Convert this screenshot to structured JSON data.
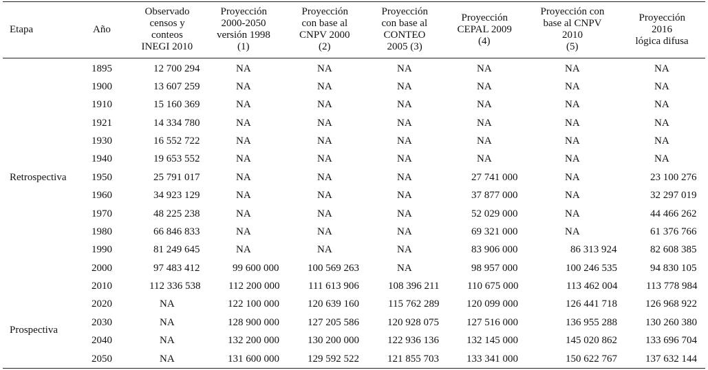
{
  "header": [
    [
      "Etapa"
    ],
    [
      "Año"
    ],
    [
      "Observado",
      "censos y",
      "conteos",
      "INEGI 2010"
    ],
    [
      "Proyección",
      "2000-2050",
      "versión 1998",
      "(1)"
    ],
    [
      "Proyección",
      "con base al",
      "CNPV 2000",
      "(2)"
    ],
    [
      "Proyección",
      "con base al",
      "CONTEO",
      "2005 (3)"
    ],
    [
      "Proyección",
      "CEPAL 2009",
      "(4)"
    ],
    [
      "Proyección con",
      "base al CNPV",
      "2010",
      "(5)"
    ],
    [
      "Proyección",
      "2016",
      "lógica difusa"
    ]
  ],
  "stages": [
    "Retrospectiva",
    "Prospectiva"
  ],
  "rows": [
    [
      "1895",
      "12 700 294",
      "NA",
      "NA",
      "NA",
      "NA",
      "NA",
      "NA"
    ],
    [
      "1900",
      "13 607 259",
      "NA",
      "NA",
      "NA",
      "NA",
      "NA",
      "NA"
    ],
    [
      "1910",
      "15 160 369",
      "NA",
      "NA",
      "NA",
      "NA",
      "NA",
      "NA"
    ],
    [
      "1921",
      "14 334 780",
      "NA",
      "NA",
      "NA",
      "NA",
      "NA",
      "NA"
    ],
    [
      "1930",
      "16 552 722",
      "NA",
      "NA",
      "NA",
      "NA",
      "NA",
      "NA"
    ],
    [
      "1940",
      "19 653 552",
      "NA",
      "NA",
      "NA",
      "NA",
      "NA",
      "NA"
    ],
    [
      "1950",
      "25 791 017",
      "NA",
      "NA",
      "NA",
      "27 741 000",
      "NA",
      "23 100 276"
    ],
    [
      "1960",
      "34 923 129",
      "NA",
      "NA",
      "NA",
      "37 877 000",
      "NA",
      "32 297 019"
    ],
    [
      "1970",
      "48 225 238",
      "NA",
      "NA",
      "NA",
      "52 029 000",
      "NA",
      "44 466 262"
    ],
    [
      "1980",
      "66 846 833",
      "NA",
      "NA",
      "NA",
      "69 321 000",
      "NA",
      "61 376 766"
    ],
    [
      "1990",
      "81 249 645",
      "NA",
      "NA",
      "NA",
      "83 906 000",
      "86 313 924",
      "82 608 385"
    ],
    [
      "2000",
      "97 483 412",
      "99 600 000",
      "100 569 263",
      "NA",
      "98 957 000",
      "100 246 535",
      "94 830 105"
    ],
    [
      "2010",
      "112 336 538",
      "112 200 000",
      "111 613 906",
      "108 396 211",
      "110 675 000",
      "113 462 004",
      "113 778 984"
    ],
    [
      "2020",
      "NA",
      "122 100 000",
      "120 639 160",
      "115 762 289",
      "120 099 000",
      "126 441 718",
      "126 968 922"
    ],
    [
      "2030",
      "NA",
      "128 900 000",
      "127 205 586",
      "120 928 075",
      "127 516 000",
      "136 955 288",
      "130 260 380"
    ],
    [
      "2040",
      "NA",
      "132 200 000",
      "130 200 000",
      "122 936 136",
      "132 145 000",
      "145 020 862",
      "133 696 704"
    ],
    [
      "2050",
      "NA",
      "131 600 000",
      "129 592 522",
      "121 855 703",
      "133 341 000",
      "150 622 767",
      "137 632 144"
    ]
  ]
}
